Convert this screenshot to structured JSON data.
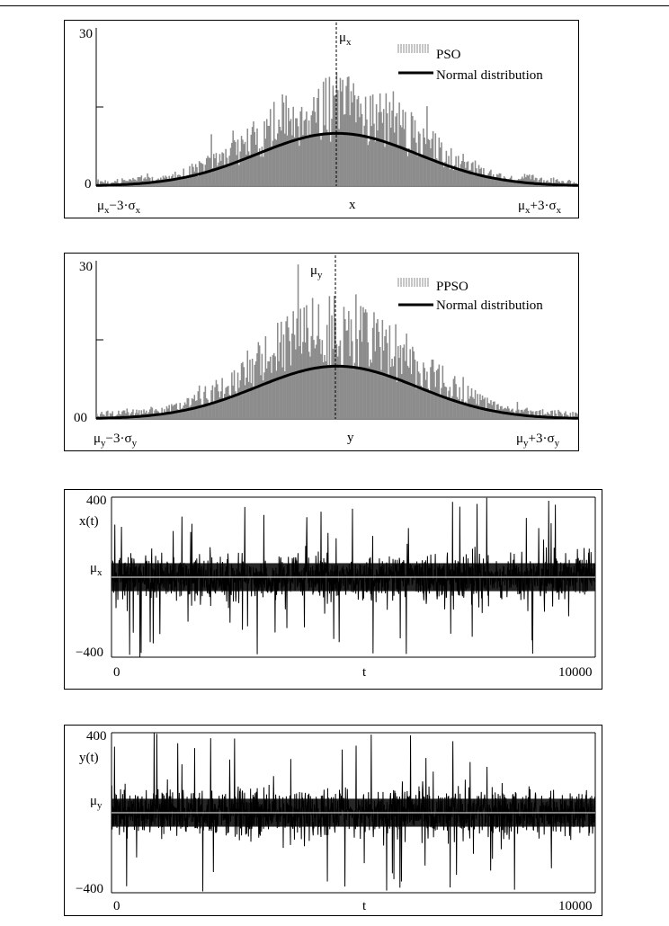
{
  "colors": {
    "histogram_fill": "#8c8c8c",
    "curve": "#000000",
    "mean_line": "#000000",
    "signal": "#000000",
    "baseline": "#a8a8a8"
  },
  "chart_data": [
    {
      "type": "bar",
      "id": "hist_x",
      "ylim": [
        0,
        30
      ],
      "yticks": [
        "30",
        "0"
      ],
      "mean_label": {
        "base": "μ",
        "sub": "x"
      },
      "x_left_label": {
        "base": "μ",
        "sub": "x",
        "rest": "−3·σ",
        "sub2": "x"
      },
      "x_center_label": "x",
      "x_right_label": {
        "base": "μ",
        "sub": "x",
        "rest": "+3·σ",
        "sub2": "x"
      },
      "legend": [
        "PSO",
        "Normal distribution"
      ],
      "bins": 400,
      "curve_peak": 10,
      "hist_peak": 24,
      "seed": 7
    },
    {
      "type": "bar",
      "id": "hist_y",
      "ylim": [
        0,
        30
      ],
      "yticks": [
        "30",
        "00"
      ],
      "mean_label": {
        "base": "μ",
        "sub": "y"
      },
      "x_left_label": {
        "base": "μ",
        "sub": "y",
        "rest": "−3·σ",
        "sub2": "y"
      },
      "x_center_label": "y",
      "x_right_label": {
        "base": "μ",
        "sub": "y",
        "rest": "+3·σ",
        "sub2": "y"
      },
      "legend": [
        "PPSO",
        "Normal distribution"
      ],
      "bins": 400,
      "curve_peak": 10,
      "hist_peak": 27,
      "seed": 13
    },
    {
      "type": "line",
      "id": "series_x",
      "ylim": [
        -400,
        400
      ],
      "xlim": [
        0,
        10000
      ],
      "yticks": [
        "400",
        "−400"
      ],
      "xticks": [
        "0",
        "10000"
      ],
      "xlabel": "t",
      "ylabel": "x(t)",
      "mean_label": {
        "base": "μ",
        "sub": "x"
      },
      "seed": 21
    },
    {
      "type": "line",
      "id": "series_y",
      "ylim": [
        -400,
        400
      ],
      "xlim": [
        0,
        10000
      ],
      "yticks": [
        "400",
        "−400"
      ],
      "xticks": [
        "0",
        "10000"
      ],
      "xlabel": "t",
      "ylabel": "y(t)",
      "mean_label": {
        "base": "μ",
        "sub": "y"
      },
      "seed": 37
    }
  ]
}
